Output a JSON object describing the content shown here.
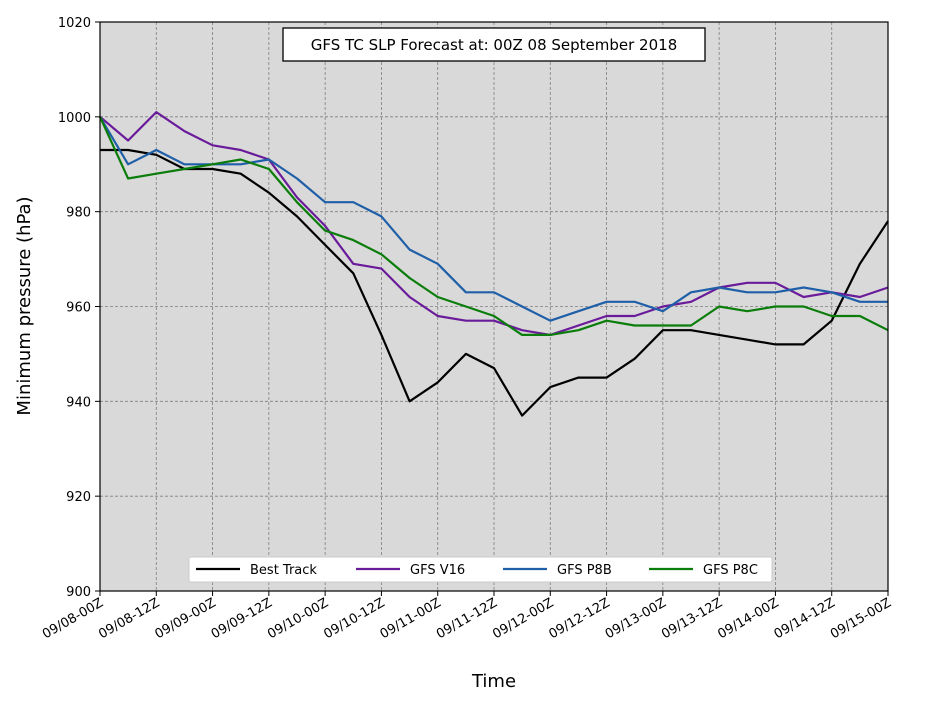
{
  "chart_data": {
    "type": "line",
    "title": "GFS TC SLP Forecast at: 00Z 08 September 2018",
    "xlabel": "Time",
    "ylabel": "Minimum pressure (hPa)",
    "ylim": [
      900,
      1020
    ],
    "yticks": [
      900,
      920,
      940,
      960,
      980,
      1000,
      1020
    ],
    "x": [
      "09/08-00Z",
      "09/08-06Z",
      "09/08-12Z",
      "09/08-18Z",
      "09/09-00Z",
      "09/09-06Z",
      "09/09-12Z",
      "09/09-18Z",
      "09/10-00Z",
      "09/10-06Z",
      "09/10-12Z",
      "09/10-18Z",
      "09/11-00Z",
      "09/11-06Z",
      "09/11-12Z",
      "09/11-18Z",
      "09/12-00Z",
      "09/12-06Z",
      "09/12-12Z",
      "09/12-18Z",
      "09/13-00Z",
      "09/13-06Z",
      "09/13-12Z",
      "09/13-18Z",
      "09/14-00Z",
      "09/14-06Z",
      "09/14-12Z",
      "09/14-18Z",
      "09/15-00Z"
    ],
    "xticks": [
      "09/08-00Z",
      "09/08-12Z",
      "09/09-00Z",
      "09/09-12Z",
      "09/10-00Z",
      "09/10-12Z",
      "09/11-00Z",
      "09/11-12Z",
      "09/12-00Z",
      "09/12-12Z",
      "09/13-00Z",
      "09/13-12Z",
      "09/14-00Z",
      "09/14-12Z",
      "09/15-00Z"
    ],
    "grid": true,
    "legend_position": "bottom-center",
    "background": "#d9d9d9",
    "series": [
      {
        "name": "Best Track",
        "color": "#000000",
        "values": [
          993,
          993,
          992,
          989,
          989,
          988,
          984,
          979,
          973,
          967,
          954,
          940,
          944,
          950,
          947,
          937,
          943,
          945,
          945,
          949,
          955,
          955,
          954,
          953,
          952,
          952,
          957,
          969,
          978
        ]
      },
      {
        "name": "GFS V16",
        "color": "#6a1b9a",
        "values": [
          1000,
          995,
          1001,
          997,
          994,
          993,
          991,
          983,
          977,
          969,
          968,
          962,
          958,
          957,
          957,
          955,
          954,
          956,
          958,
          958,
          960,
          961,
          964,
          965,
          965,
          962,
          963,
          962,
          964
        ]
      },
      {
        "name": "GFS P8B",
        "color": "#1f5fa8",
        "values": [
          1000,
          990,
          993,
          990,
          990,
          990,
          991,
          987,
          982,
          982,
          979,
          972,
          969,
          963,
          963,
          960,
          957,
          959,
          961,
          961,
          959,
          963,
          964,
          963,
          963,
          964,
          963,
          961,
          961
        ]
      },
      {
        "name": "GFS P8C",
        "color": "#0a7d0a",
        "values": [
          1000,
          987,
          988,
          989,
          990,
          991,
          989,
          982,
          976,
          974,
          971,
          966,
          962,
          960,
          958,
          954,
          954,
          955,
          957,
          956,
          956,
          956,
          960,
          959,
          960,
          960,
          958,
          958,
          955
        ]
      }
    ]
  }
}
